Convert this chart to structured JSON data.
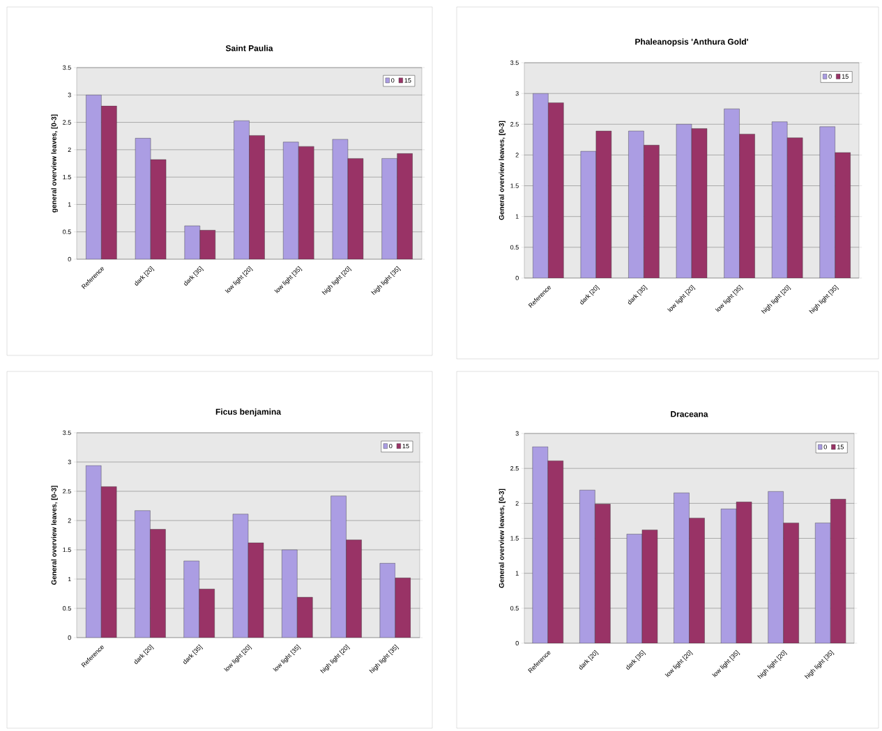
{
  "chart_data": [
    {
      "type": "bar",
      "title": "Saint Paulia",
      "ylabel": "general overview leaves, [0-3]",
      "categories": [
        "Reference",
        "dark [20]",
        "dark [35]",
        "low light [20]",
        "low light [35]",
        "high light [20]",
        "high light [35]"
      ],
      "series": [
        {
          "name": "0",
          "color": "#ab9de3",
          "values": [
            3.0,
            2.21,
            0.61,
            2.53,
            2.14,
            2.19,
            1.84
          ]
        },
        {
          "name": "15",
          "color": "#993366",
          "values": [
            2.8,
            1.82,
            0.53,
            2.26,
            2.06,
            1.84,
            1.93
          ]
        }
      ],
      "ylim": [
        0,
        3.5
      ],
      "yticks": [
        0,
        0.5,
        1,
        1.5,
        2,
        2.5,
        3,
        3.5
      ],
      "grid": "y",
      "legend": "top right"
    },
    {
      "type": "bar",
      "title": "Phaleanopsis 'Anthura Gold'",
      "ylabel": "General overview leaves, [0-3]",
      "categories": [
        "Reference",
        "dark [20]",
        "dark [35]",
        "low light [20]",
        "low light [35]",
        "high light [20]",
        "high light [35]"
      ],
      "series": [
        {
          "name": "0",
          "color": "#ab9de3",
          "values": [
            3.0,
            2.06,
            2.39,
            2.5,
            2.75,
            2.54,
            2.46
          ]
        },
        {
          "name": "15",
          "color": "#993366",
          "values": [
            2.85,
            2.39,
            2.16,
            2.43,
            2.34,
            2.28,
            2.04
          ]
        }
      ],
      "ylim": [
        0,
        3.5
      ],
      "yticks": [
        0,
        0.5,
        1,
        1.5,
        2,
        2.5,
        3,
        3.5
      ],
      "grid": "y",
      "legend": "top right"
    },
    {
      "type": "bar",
      "title": "Ficus benjamina",
      "ylabel": "General overview leaves, [0-3]",
      "categories": [
        "Reference",
        "dark [20]",
        "dark [35]",
        "low light [20]",
        "low light [35]",
        "high light [20]",
        "high light [35]"
      ],
      "series": [
        {
          "name": "0",
          "color": "#ab9de3",
          "values": [
            2.94,
            2.17,
            1.31,
            2.11,
            1.5,
            2.42,
            1.27
          ]
        },
        {
          "name": "15",
          "color": "#993366",
          "values": [
            2.58,
            1.85,
            0.83,
            1.62,
            0.69,
            1.67,
            1.02
          ]
        }
      ],
      "ylim": [
        0,
        3.5
      ],
      "yticks": [
        0,
        0.5,
        1,
        1.5,
        2,
        2.5,
        3,
        3.5
      ],
      "grid": "y",
      "legend": "top right"
    },
    {
      "type": "bar",
      "title": "Draceana",
      "ylabel": "General overview leaves, [0-3]",
      "categories": [
        "Reference",
        "dark [20]",
        "dark [35]",
        "low light [20]",
        "low light [35]",
        "high light [20]",
        "high light [35]"
      ],
      "series": [
        {
          "name": "0",
          "color": "#ab9de3",
          "values": [
            2.81,
            2.19,
            1.56,
            2.15,
            1.92,
            2.17,
            1.72
          ]
        },
        {
          "name": "15",
          "color": "#993366",
          "values": [
            2.61,
            1.99,
            1.62,
            1.79,
            2.02,
            1.72,
            2.06
          ]
        }
      ],
      "ylim": [
        0,
        3
      ],
      "yticks": [
        0,
        0.5,
        1,
        1.5,
        2,
        2.5,
        3
      ],
      "grid": "y",
      "legend": "top right"
    }
  ]
}
